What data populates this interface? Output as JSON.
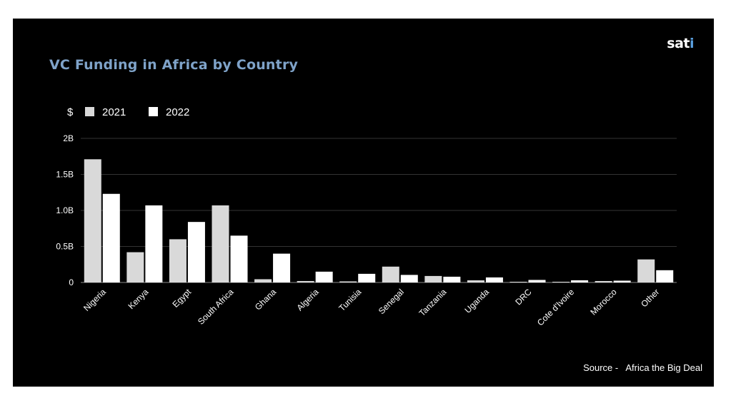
{
  "logo": {
    "text": "sat",
    "accent": "i"
  },
  "source": "Source -   Africa the Big Deal",
  "colors": {
    "background": "#000000",
    "title": "#7fa3c9",
    "series_2021": "#d9d9d9",
    "series_2022": "#ffffff",
    "grid": "#333333",
    "logo_accent": "#5aa0e0"
  },
  "chart_data": {
    "type": "bar",
    "title": "VC Funding in Africa by Country",
    "unit": "$",
    "xlabel": "",
    "ylabel": "",
    "ylim": [
      0,
      2000000000
    ],
    "yticks": [
      {
        "value": 0,
        "label": "0"
      },
      {
        "value": 500000000,
        "label": "0.5B"
      },
      {
        "value": 1000000000,
        "label": "1.0B"
      },
      {
        "value": 1500000000,
        "label": "1.5B"
      },
      {
        "value": 2000000000,
        "label": "2B"
      }
    ],
    "grid": true,
    "legend_position": "top-left",
    "categories": [
      "Nigeria",
      "Kenya",
      "Egypt",
      "South Africa",
      "Ghana",
      "Algeria",
      "Tunisia",
      "Senegal",
      "Tanzania",
      "Uganda",
      "DRC",
      "Cote d'Ivoire",
      "Morocco",
      "Other"
    ],
    "series": [
      {
        "name": "2021",
        "color": "#d9d9d9",
        "values": [
          1710000000,
          420000000,
          600000000,
          1070000000,
          45000000,
          20000000,
          15000000,
          220000000,
          90000000,
          30000000,
          5000000,
          5000000,
          20000000,
          320000000
        ]
      },
      {
        "name": "2022",
        "color": "#ffffff",
        "values": [
          1230000000,
          1070000000,
          840000000,
          650000000,
          400000000,
          150000000,
          120000000,
          105000000,
          80000000,
          70000000,
          35000000,
          30000000,
          25000000,
          170000000
        ]
      }
    ]
  }
}
